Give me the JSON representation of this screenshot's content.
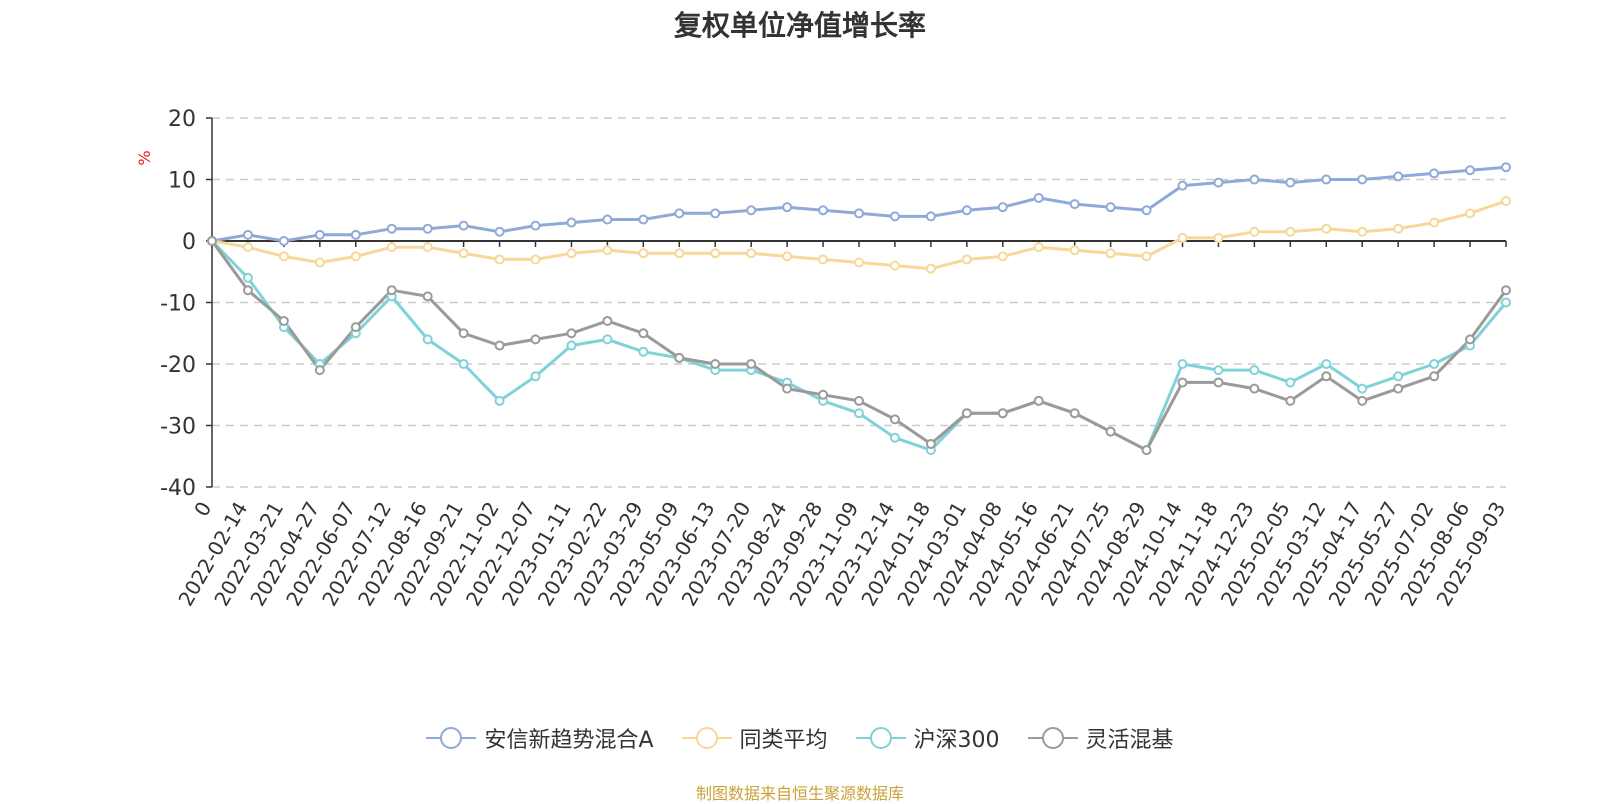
{
  "chart_data": {
    "type": "line",
    "title": "复权单位净值增长率",
    "ylabel": "%",
    "ylim": [
      -40,
      20
    ],
    "yticks": [
      20,
      10,
      0,
      -10,
      -20,
      -30,
      -40
    ],
    "grid": true,
    "legend_position": "bottom",
    "x_start_label": "0",
    "x": [
      "2022-02-14",
      "2022-03-21",
      "2022-04-27",
      "2022-06-07",
      "2022-07-12",
      "2022-08-16",
      "2022-09-21",
      "2022-11-02",
      "2022-12-07",
      "2023-01-11",
      "2023-02-22",
      "2023-03-29",
      "2023-05-09",
      "2023-06-13",
      "2023-07-20",
      "2023-08-24",
      "2023-09-28",
      "2023-11-09",
      "2023-12-14",
      "2024-01-18",
      "2024-03-01",
      "2024-04-08",
      "2024-05-16",
      "2024-06-21",
      "2024-07-25",
      "2024-08-29",
      "2024-10-14",
      "2024-11-18",
      "2024-12-23",
      "2025-02-05",
      "2025-03-12",
      "2025-04-17",
      "2025-05-27",
      "2025-07-02",
      "2025-08-06",
      "2025-09-03"
    ],
    "series": [
      {
        "name": "安信新趋势混合A",
        "color": "#8fa9d8",
        "values": [
          1.0,
          0.0,
          1.0,
          1.0,
          2.0,
          2.0,
          2.5,
          1.5,
          2.5,
          3.0,
          3.5,
          3.5,
          4.5,
          4.5,
          5.0,
          5.5,
          5.0,
          4.5,
          4.0,
          4.0,
          5.0,
          5.5,
          7.0,
          6.0,
          5.5,
          5.0,
          9.0,
          9.5,
          10.0,
          9.5,
          10.0,
          10.0,
          10.5,
          11.0,
          11.5,
          12.0
        ]
      },
      {
        "name": "同类平均",
        "color": "#f8d898",
        "values": [
          -1.0,
          -2.5,
          -3.5,
          -2.5,
          -1.0,
          -1.0,
          -2.0,
          -3.0,
          -3.0,
          -2.0,
          -1.5,
          -2.0,
          -2.0,
          -2.0,
          -2.0,
          -2.5,
          -3.0,
          -3.5,
          -4.0,
          -4.5,
          -3.0,
          -2.5,
          -1.0,
          -1.5,
          -2.0,
          -2.5,
          0.5,
          0.5,
          1.5,
          1.5,
          2.0,
          1.5,
          2.0,
          3.0,
          4.5,
          6.5
        ]
      },
      {
        "name": "沪深300",
        "color": "#7fd3d8",
        "values": [
          -6.0,
          -14.0,
          -20.0,
          -15.0,
          -9.0,
          -16.0,
          -20.0,
          -26.0,
          -22.0,
          -17.0,
          -16.0,
          -18.0,
          -19.0,
          -21.0,
          -21.0,
          -23.0,
          -26.0,
          -28.0,
          -32.0,
          -34.0,
          -28.0,
          -28.0,
          -26.0,
          -28.0,
          -31.0,
          -34.0,
          -20.0,
          -21.0,
          -21.0,
          -23.0,
          -20.0,
          -24.0,
          -22.0,
          -20.0,
          -17.0,
          -10.0
        ]
      },
      {
        "name": "灵活混基",
        "color": "#9a9a9a",
        "values": [
          -8.0,
          -13.0,
          -21.0,
          -14.0,
          -8.0,
          -9.0,
          -15.0,
          -17.0,
          -16.0,
          -15.0,
          -13.0,
          -15.0,
          -19.0,
          -20.0,
          -20.0,
          -24.0,
          -25.0,
          -26.0,
          -29.0,
          -33.0,
          -28.0,
          -28.0,
          -26.0,
          -28.0,
          -31.0,
          -34.0,
          -23.0,
          -23.0,
          -24.0,
          -26.0,
          -22.0,
          -26.0,
          -24.0,
          -22.0,
          -16.0,
          -8.0
        ]
      }
    ]
  },
  "footer": {
    "source": "制图数据来自恒生聚源数据库"
  },
  "icons": {
    "legend_marker": "line-with-circle-icon"
  }
}
